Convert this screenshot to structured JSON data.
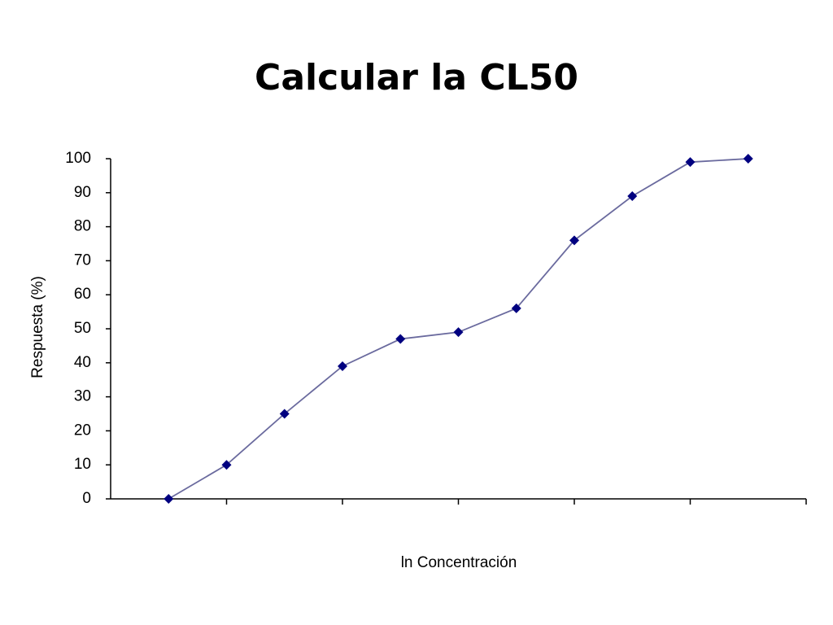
{
  "title": "Calcular la CL50",
  "chart_data": {
    "type": "line",
    "x_label": "ln Concentración",
    "y_label": "Respuesta (%)",
    "categories": [
      null,
      null,
      null,
      null,
      null,
      null,
      null,
      null,
      null,
      null,
      null
    ],
    "series": [
      {
        "color": "#000080",
        "values": [
          0,
          10,
          25,
          39,
          47,
          49,
          56,
          76,
          89,
          99,
          100
        ]
      }
    ],
    "ylim": [
      0,
      100
    ],
    "yticks": [
      0,
      10,
      20,
      30,
      40,
      50,
      60,
      70,
      80,
      90,
      100
    ],
    "grid": false
  }
}
